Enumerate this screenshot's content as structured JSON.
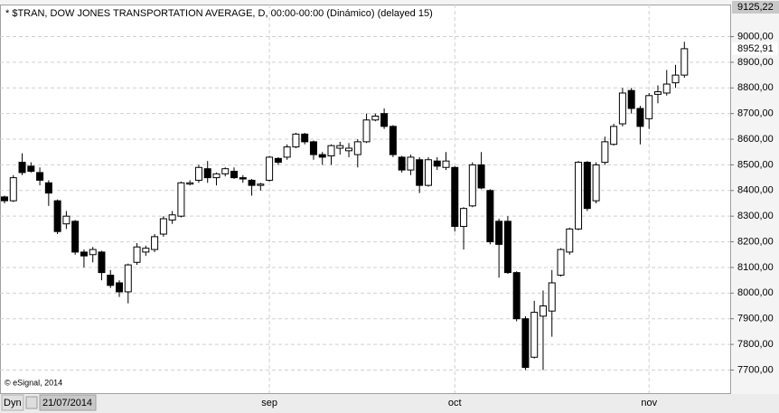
{
  "chart_data": {
    "type": "candlestick",
    "title": "* $TRAN, DOW JONES TRANSPORTATION AVERAGE, D, 00:00-00:00 (Dinámico) (delayed 15)",
    "watermark": "© eSignal, 2014",
    "mode_label": "Dyn",
    "start_date": "21/07/2014",
    "categories": [
      null,
      null,
      null,
      null,
      null,
      null,
      null,
      null,
      null,
      null,
      null,
      null,
      null,
      null,
      null,
      null,
      null,
      null,
      null,
      null,
      null,
      null,
      null,
      null,
      null,
      null,
      null,
      null,
      null,
      null,
      "sep",
      null,
      null,
      null,
      null,
      null,
      null,
      null,
      null,
      null,
      null,
      null,
      null,
      null,
      null,
      null,
      null,
      null,
      null,
      null,
      null,
      "oct",
      null,
      null,
      null,
      null,
      null,
      null,
      null,
      null,
      null,
      null,
      null,
      null,
      null,
      null,
      null,
      null,
      null,
      null,
      null,
      null,
      null,
      "nov",
      null,
      null,
      null,
      null
    ],
    "open": [
      8375,
      8360,
      8510,
      8495,
      8470,
      8430,
      8360,
      8270,
      8280,
      8160,
      8150,
      8160,
      8070,
      8040,
      8005,
      8120,
      8160,
      8170,
      8230,
      8285,
      8300,
      8425,
      8440,
      8485,
      8450,
      8465,
      8475,
      8450,
      8440,
      8420,
      8440,
      8525,
      8530,
      8570,
      8620,
      8590,
      8540,
      8535,
      8565,
      8555,
      8540,
      8590,
      8675,
      8700,
      8650,
      8530,
      8480,
      8520,
      8420,
      8515,
      8490,
      8490,
      8260,
      8340,
      8500,
      8400,
      8280,
      8280,
      8080,
      7900,
      7750,
      7910,
      7930,
      8070,
      8160,
      8250,
      8510,
      8360,
      8510,
      8580,
      8660,
      8790,
      8720,
      8680,
      8775,
      8780,
      8820,
      8850
    ],
    "high": [
      8380,
      8460,
      8545,
      8510,
      8490,
      8440,
      8365,
      8320,
      8285,
      8170,
      8180,
      8165,
      8090,
      8050,
      8115,
      8195,
      8185,
      8230,
      8300,
      8320,
      8435,
      8440,
      8500,
      8515,
      8470,
      8490,
      8490,
      8460,
      8445,
      8430,
      8535,
      8530,
      8580,
      8625,
      8625,
      8595,
      8550,
      8580,
      8590,
      8585,
      8600,
      8700,
      8700,
      8720,
      8655,
      8535,
      8540,
      8530,
      8530,
      8530,
      8550,
      8495,
      8335,
      8510,
      8550,
      8405,
      8290,
      8300,
      8085,
      7910,
      7970,
      8010,
      8090,
      8175,
      8255,
      8515,
      8515,
      8510,
      8610,
      8660,
      8800,
      8800,
      8730,
      8780,
      8810,
      8870,
      8890,
      8980
    ],
    "low": [
      8350,
      8355,
      8460,
      8470,
      8420,
      8340,
      8230,
      8250,
      8150,
      8100,
      8120,
      8050,
      8020,
      7985,
      7960,
      8110,
      8145,
      8160,
      8220,
      8270,
      8295,
      8420,
      8430,
      8430,
      8420,
      8455,
      8445,
      8430,
      8380,
      8400,
      8435,
      8500,
      8520,
      8565,
      8580,
      8520,
      8500,
      8500,
      8540,
      8530,
      8490,
      8585,
      8670,
      8640,
      8530,
      8470,
      8460,
      8390,
      8415,
      8480,
      8480,
      8240,
      8170,
      8335,
      8405,
      8190,
      8060,
      8075,
      7890,
      7700,
      7745,
      7700,
      7830,
      8065,
      8150,
      8245,
      8320,
      8350,
      8500,
      8575,
      8650,
      8700,
      8580,
      8640,
      8740,
      8770,
      8800,
      8840
    ],
    "close": [
      8360,
      8450,
      8470,
      8475,
      8440,
      8390,
      8240,
      8300,
      8160,
      8145,
      8170,
      8080,
      8030,
      8005,
      8110,
      8180,
      8175,
      8220,
      8290,
      8305,
      8430,
      8430,
      8490,
      8450,
      8465,
      8485,
      8450,
      8445,
      8420,
      8425,
      8530,
      8510,
      8570,
      8620,
      8590,
      8540,
      8530,
      8575,
      8575,
      8565,
      8590,
      8675,
      8690,
      8650,
      8540,
      8480,
      8530,
      8420,
      8520,
      8495,
      8515,
      8260,
      8330,
      8500,
      8410,
      8200,
      8190,
      8080,
      7900,
      7710,
      7925,
      7950,
      8040,
      8170,
      8250,
      8510,
      8330,
      8500,
      8590,
      8650,
      8780,
      8720,
      8650,
      8770,
      8785,
      8815,
      8850,
      8952.91
    ],
    "value_labels": [
      null,
      null,
      null,
      null,
      null,
      null,
      null,
      null,
      null,
      null,
      null,
      null,
      null,
      null,
      null,
      null,
      null,
      null,
      null,
      null,
      null,
      null,
      null,
      null,
      null,
      null,
      null,
      null,
      null,
      null,
      null,
      null,
      null,
      null,
      null,
      null,
      null,
      null,
      null,
      null,
      null,
      null,
      null,
      null,
      null,
      null,
      null,
      null,
      null,
      null,
      null,
      null,
      null,
      null,
      null,
      null,
      null,
      null,
      null,
      null,
      null,
      null,
      null,
      null,
      null,
      null,
      null,
      null,
      null,
      null,
      null,
      null,
      null,
      null,
      null,
      null,
      null,
      "8952,91"
    ],
    "top_label": {
      "value": 9125.22,
      "label": "9125,22"
    },
    "up_color": "#ffffff",
    "down_color": "#000000",
    "edge_color": "#000000",
    "ylim": [
      7610,
      9125.22
    ],
    "yticks": [
      {
        "value": 7700,
        "label": "7700,00"
      },
      {
        "value": 7800,
        "label": "7800,00"
      },
      {
        "value": 7900,
        "label": "7900,00"
      },
      {
        "value": 8000,
        "label": "8000,00"
      },
      {
        "value": 8100,
        "label": "8100,00"
      },
      {
        "value": 8200,
        "label": "8200,00"
      },
      {
        "value": 8300,
        "label": "8300,00"
      },
      {
        "value": 8400,
        "label": "8400,00"
      },
      {
        "value": 8500,
        "label": "8500,00"
      },
      {
        "value": 8600,
        "label": "8600,00"
      },
      {
        "value": 8700,
        "label": "8700,00"
      },
      {
        "value": 8800,
        "label": "8800,00"
      },
      {
        "value": 8900,
        "label": "8900,00"
      },
      {
        "value": 9000,
        "label": "9000,00"
      }
    ],
    "grid": true
  }
}
